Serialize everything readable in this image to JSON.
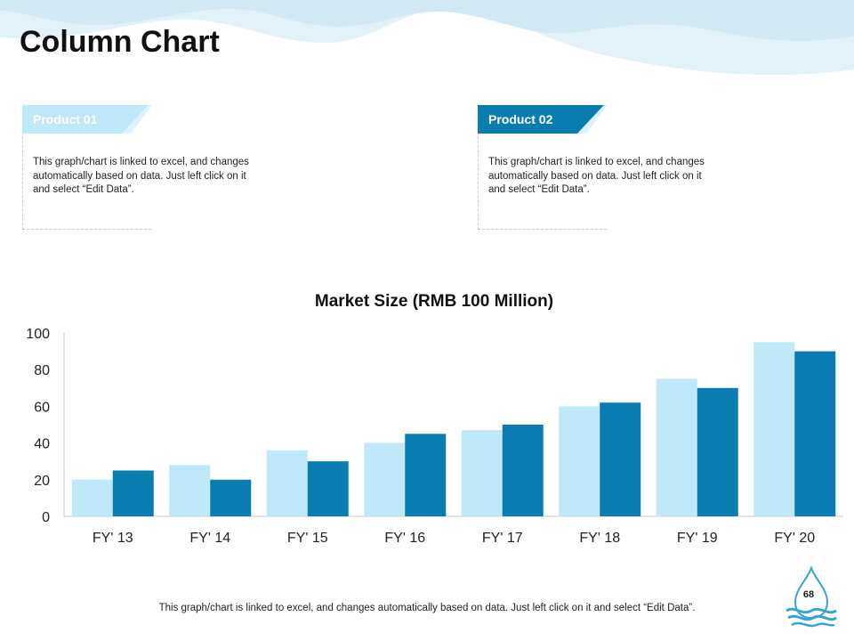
{
  "slide": {
    "title": "Column Chart",
    "page_number": "68",
    "footer_note": "This graph/chart is linked to excel, and changes automatically based on data. Just left click on it and select “Edit Data”."
  },
  "cards": [
    {
      "label": "Product 01",
      "color": "#bfe8f9",
      "text": "This graph/chart is linked to excel, and changes automatically based on data. Just left click on it and select “Edit Data”."
    },
    {
      "label": "Product 02",
      "color": "#0a7db0",
      "text": "This graph/chart is linked to excel, and changes automatically based on data. Just left click on it and select “Edit Data”."
    }
  ],
  "colors": {
    "wave_light": "#e3f1f8",
    "wave_mid": "#d2e9f4",
    "axis": "#c8c8c8",
    "logo": "#3aa3d4"
  },
  "chart_data": {
    "type": "bar",
    "title": "Market Size (RMB 100 Million)",
    "categories": [
      "FY' 13",
      "FY' 14",
      "FY' 15",
      "FY' 16",
      "FY' 17",
      "FY' 18",
      "FY' 19",
      "FY' 20"
    ],
    "series": [
      {
        "name": "Product 01",
        "color": "#bfe8f9",
        "values": [
          20,
          28,
          36,
          40,
          47,
          60,
          75,
          95
        ]
      },
      {
        "name": "Product 02",
        "color": "#0a7db0",
        "values": [
          25,
          20,
          30,
          45,
          50,
          62,
          70,
          90
        ]
      }
    ],
    "ylim": [
      0,
      100
    ],
    "yticks": [
      0,
      20,
      40,
      60,
      80,
      100
    ],
    "xlabel": "",
    "ylabel": "",
    "grid": false
  }
}
